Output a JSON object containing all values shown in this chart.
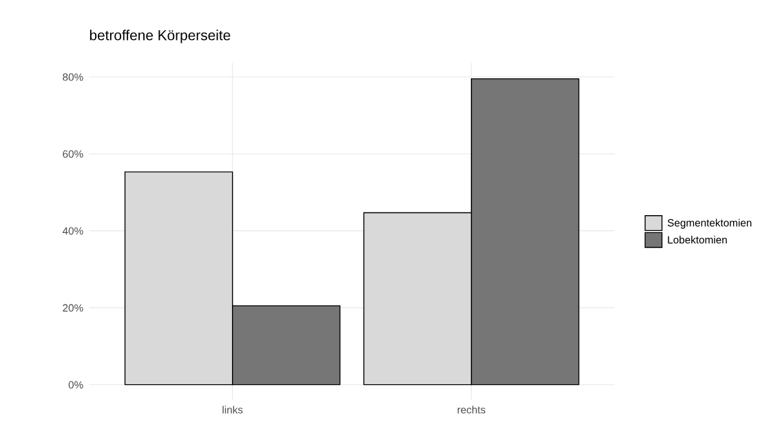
{
  "chart_data": {
    "type": "bar",
    "title": "betroffene Körperseite",
    "categories": [
      "links",
      "rechts"
    ],
    "series": [
      {
        "name": "Segmentektomien",
        "color": "#d9d9d9",
        "values": [
          55.3,
          44.7
        ]
      },
      {
        "name": "Lobektomien",
        "color": "#767676",
        "values": [
          20.5,
          79.5
        ]
      }
    ],
    "ylim": [
      -4,
      83.6
    ],
    "yticks": [
      {
        "value": 0,
        "label": "0%"
      },
      {
        "value": 20,
        "label": "20%"
      },
      {
        "value": 40,
        "label": "40%"
      },
      {
        "value": 60,
        "label": "60%"
      },
      {
        "value": 80,
        "label": "80%"
      }
    ],
    "grid": true,
    "legend": "right"
  }
}
